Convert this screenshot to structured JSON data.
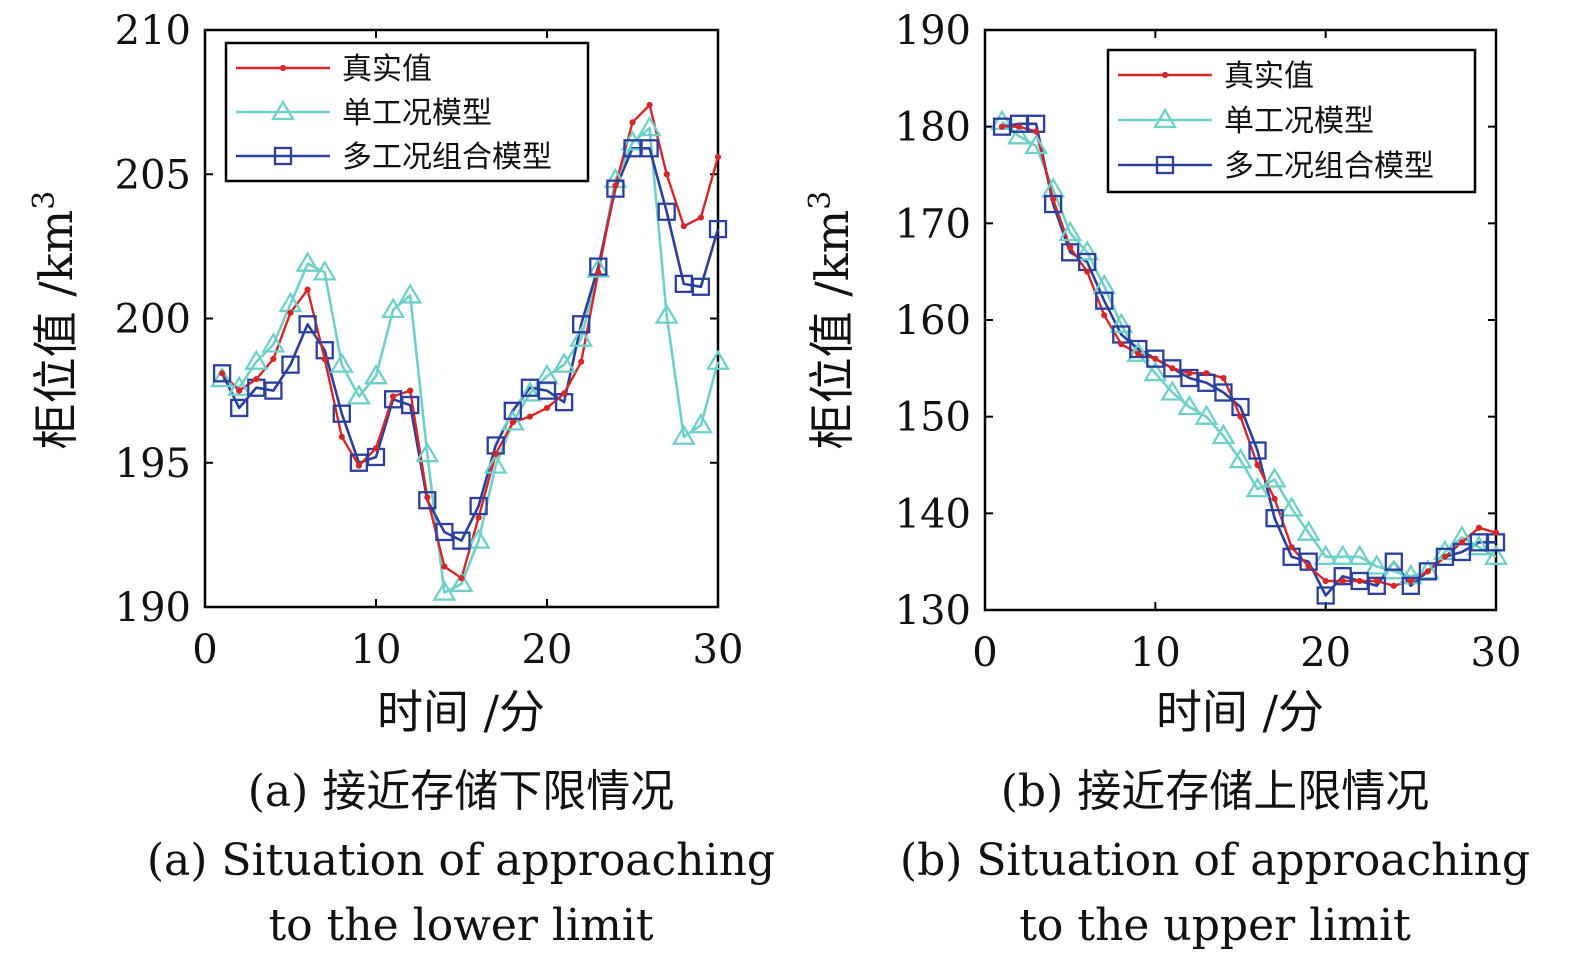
{
  "colors": {
    "true_value": "#d62728",
    "single_model": "#6fd0c8",
    "multi_model": "#2b3f9e",
    "axis": "#000000"
  },
  "chart_data": [
    {
      "type": "line",
      "xlabel": "时间 /分",
      "ylabel": "柜位值 /km",
      "ylabel_sup": "3",
      "xlim": [
        0,
        30
      ],
      "ylim": [
        190,
        210
      ],
      "xticks": [
        0,
        10,
        20,
        30
      ],
      "yticks": [
        190,
        195,
        200,
        205,
        210
      ],
      "legend_position": "top-right",
      "x": [
        1,
        2,
        3,
        4,
        5,
        6,
        7,
        8,
        9,
        10,
        11,
        12,
        13,
        14,
        15,
        16,
        17,
        18,
        19,
        20,
        21,
        22,
        23,
        24,
        25,
        26,
        27,
        28,
        29,
        30
      ],
      "series": [
        {
          "name": "真实值",
          "marker": "dot",
          "color_key": "true_value",
          "values": [
            198.1,
            197.5,
            197.9,
            198.6,
            200.2,
            201.0,
            198.6,
            195.9,
            194.9,
            195.5,
            197.3,
            197.5,
            193.8,
            191.4,
            191.0,
            193.1,
            195.3,
            196.4,
            196.6,
            196.9,
            197.4,
            198.5,
            201.6,
            204.6,
            206.8,
            207.4,
            205.0,
            203.2,
            203.5,
            205.6
          ]
        },
        {
          "name": "单工况模型",
          "marker": "triangle",
          "color_key": "single_model",
          "values": [
            197.9,
            197.6,
            198.5,
            199.1,
            200.5,
            201.9,
            201.6,
            198.4,
            197.3,
            198.0,
            200.3,
            200.8,
            195.3,
            190.5,
            190.8,
            192.3,
            194.9,
            196.4,
            197.4,
            198.0,
            198.4,
            199.3,
            201.7,
            204.8,
            206.1,
            206.6,
            200.1,
            195.9,
            196.3,
            198.5
          ]
        },
        {
          "name": "多工况组合模型",
          "marker": "square",
          "color_key": "multi_model",
          "values": [
            198.1,
            196.9,
            197.6,
            197.5,
            198.4,
            199.8,
            198.9,
            196.7,
            195.0,
            195.2,
            197.2,
            197.0,
            193.7,
            192.6,
            192.3,
            193.5,
            195.6,
            196.8,
            197.6,
            197.5,
            197.1,
            199.8,
            201.8,
            204.5,
            205.9,
            205.9,
            203.7,
            201.2,
            201.1,
            203.1
          ]
        }
      ],
      "caption_cn": "(a) 接近存储下限情况",
      "caption_en_line1": "(a) Situation of approaching",
      "caption_en_line2": "to the lower limit"
    },
    {
      "type": "line",
      "xlabel": "时间 /分",
      "ylabel": "柜位值 /km",
      "ylabel_sup": "3",
      "xlim": [
        0,
        30
      ],
      "ylim": [
        130,
        190
      ],
      "xticks": [
        0,
        10,
        20,
        30
      ],
      "yticks": [
        130,
        140,
        150,
        160,
        170,
        180,
        190
      ],
      "legend_position": "top-right",
      "x": [
        1,
        2,
        3,
        4,
        5,
        6,
        7,
        8,
        9,
        10,
        11,
        12,
        13,
        14,
        15,
        16,
        17,
        18,
        19,
        20,
        21,
        22,
        23,
        24,
        25,
        26,
        27,
        28,
        29,
        30
      ],
      "series": [
        {
          "name": "真实值",
          "marker": "dot",
          "color_key": "true_value",
          "values": [
            180.0,
            180.0,
            179.5,
            172.5,
            167.5,
            165.0,
            160.5,
            157.5,
            156.5,
            156.0,
            155.0,
            154.5,
            154.5,
            154.0,
            150.0,
            145.0,
            141.5,
            136.5,
            134.5,
            133.0,
            133.0,
            133.0,
            133.0,
            132.5,
            133.0,
            134.0,
            135.5,
            137.0,
            138.5,
            138.0
          ]
        },
        {
          "name": "单工况模型",
          "marker": "triangle",
          "color_key": "single_model",
          "values": [
            180.5,
            179.0,
            178.0,
            173.5,
            169.0,
            167.0,
            163.5,
            159.5,
            156.5,
            154.5,
            152.5,
            151.0,
            150.0,
            148.0,
            145.5,
            142.5,
            143.5,
            140.5,
            138.0,
            135.5,
            135.5,
            135.5,
            134.5,
            134.0,
            133.5,
            134.0,
            136.0,
            137.5,
            136.5,
            135.5
          ]
        },
        {
          "name": "多工况组合模型",
          "marker": "square",
          "color_key": "multi_model",
          "values": [
            180.0,
            180.3,
            180.3,
            172.0,
            167.0,
            166.0,
            162.0,
            158.5,
            157.0,
            156.0,
            155.0,
            154.0,
            153.5,
            152.5,
            151.0,
            146.5,
            139.5,
            135.5,
            135.0,
            131.5,
            133.5,
            133.0,
            132.5,
            135.0,
            132.5,
            134.0,
            135.5,
            136.0,
            137.0,
            137.0
          ]
        }
      ],
      "caption_cn": "(b) 接近存储上限情况",
      "caption_en_line1": "(b) Situation of approaching",
      "caption_en_line2": "to the upper limit"
    }
  ]
}
